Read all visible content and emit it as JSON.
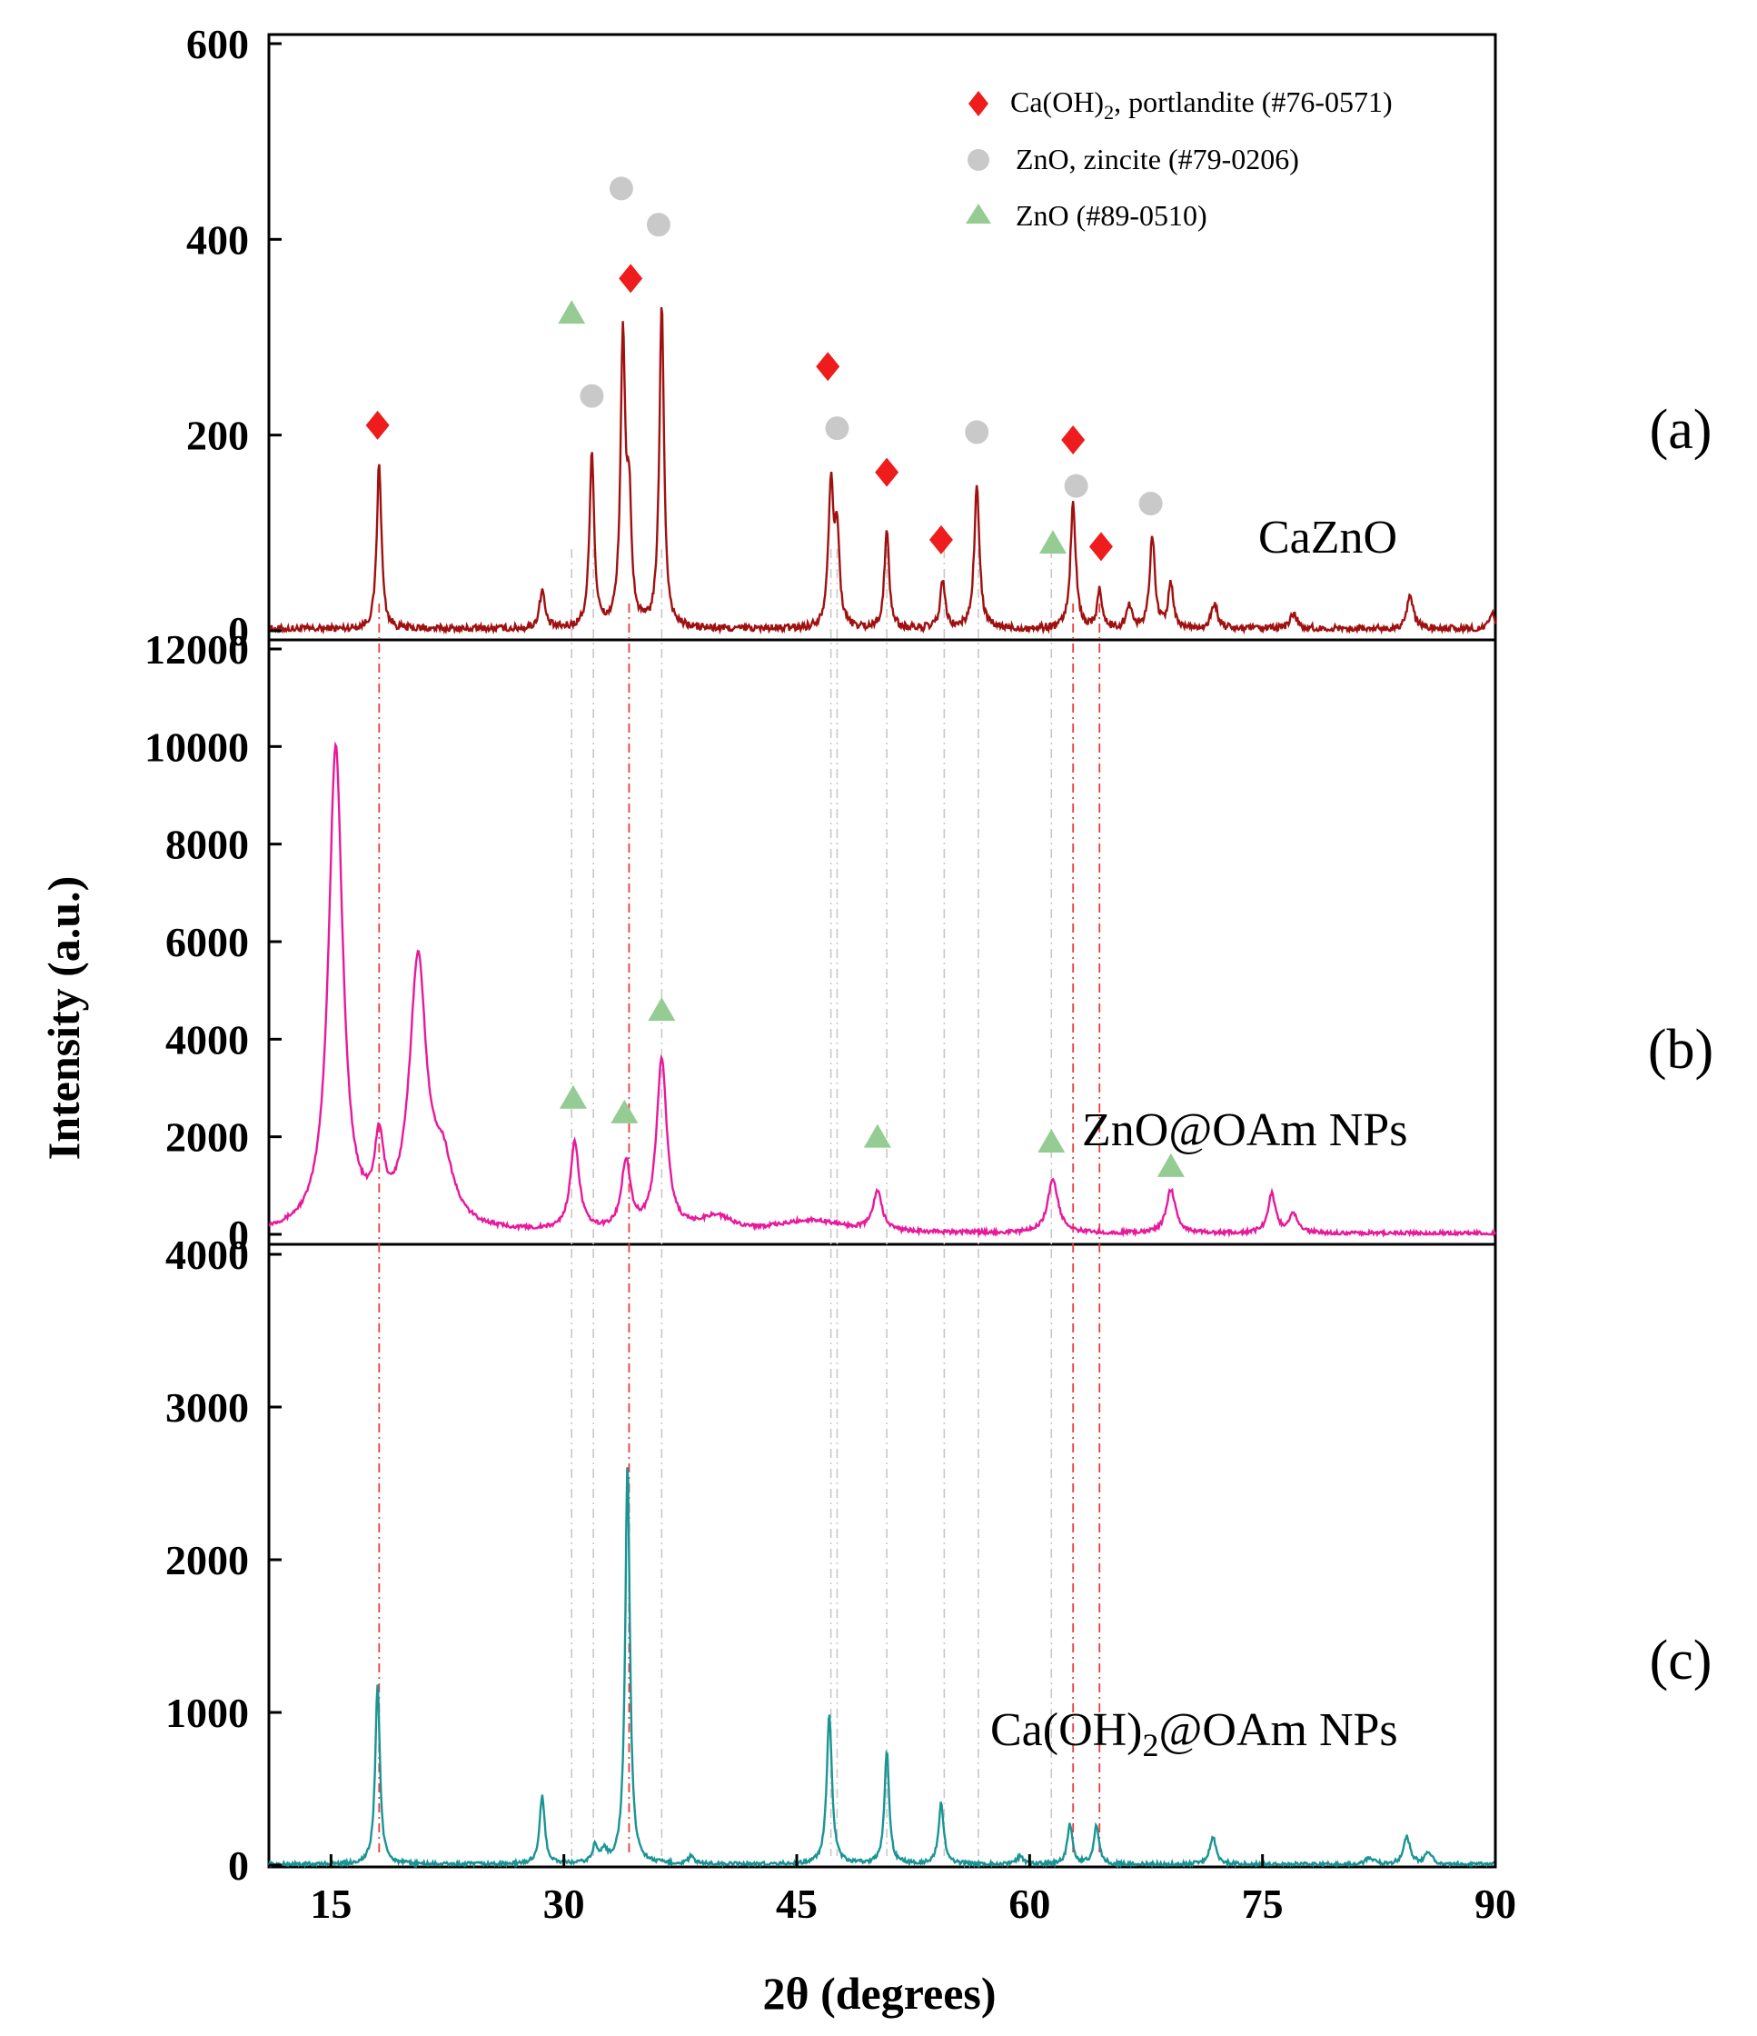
{
  "chart_data": {
    "type": "line",
    "title": "",
    "xlabel": "2θ (degrees)",
    "ylabel": "Intensity (a.u.)",
    "xlim": [
      11,
      90
    ],
    "x_ticks": [
      15,
      30,
      45,
      60,
      75,
      90
    ],
    "x_tick_labels": [
      "15",
      "30",
      "45",
      "60",
      "75",
      "90"
    ],
    "legend": {
      "placement": "top-right",
      "entries": [
        {
          "marker": "diamond",
          "color": "#ee1c1c",
          "label_pre": "Ca(OH)",
          "label_sub": "2",
          "label_post": ", portlandite (#76-0571)"
        },
        {
          "marker": "circle",
          "color": "#c9c9c9",
          "label_pre": "ZnO, zincite (#79-0206)",
          "label_sub": "",
          "label_post": ""
        },
        {
          "marker": "triangle",
          "color": "#94cc94",
          "label_pre": "ZnO (#89-0510)",
          "label_sub": "",
          "label_post": ""
        }
      ]
    },
    "reference_lines": {
      "red": [
        18.1,
        34.2,
        62.8,
        64.5
      ],
      "gray": [
        30.5,
        31.9,
        36.3,
        47.2,
        47.6,
        50.8,
        54.5,
        56.7,
        61.4
      ]
    },
    "panels": [
      {
        "panel_label": "(a)",
        "sample_label": "CaZnO",
        "line_color": "#a01010",
        "ylim": [
          0,
          600
        ],
        "y_ticks": [
          0,
          200,
          400,
          600
        ],
        "y_tick_labels": [
          "0",
          "200",
          "400",
          "600"
        ],
        "noise": 8,
        "peaks": [
          [
            18.1,
            170,
            0.18
          ],
          [
            28.6,
            40,
            0.2
          ],
          [
            31.8,
            180,
            0.18
          ],
          [
            33.8,
            290,
            0.18
          ],
          [
            34.2,
            120,
            0.18
          ],
          [
            36.3,
            330,
            0.18
          ],
          [
            47.2,
            145,
            0.2
          ],
          [
            47.6,
            90,
            0.18
          ],
          [
            50.8,
            100,
            0.18
          ],
          [
            54.4,
            50,
            0.18
          ],
          [
            56.6,
            145,
            0.2
          ],
          [
            62.8,
            130,
            0.2
          ],
          [
            64.5,
            40,
            0.18
          ],
          [
            66.4,
            25,
            0.2
          ],
          [
            67.9,
            95,
            0.2
          ],
          [
            69.1,
            45,
            0.2
          ],
          [
            71.9,
            25,
            0.25
          ],
          [
            77.0,
            15,
            0.3
          ],
          [
            84.5,
            35,
            0.25
          ],
          [
            89.8,
            15,
            0.2
          ]
        ],
        "markers": [
          {
            "type": "diamond",
            "x": 18.0,
            "y": 210
          },
          {
            "type": "triangle",
            "x": 30.5,
            "y": 325
          },
          {
            "type": "circle",
            "x": 31.8,
            "y": 240
          },
          {
            "type": "circle",
            "x": 33.7,
            "y": 452
          },
          {
            "type": "diamond",
            "x": 34.3,
            "y": 360
          },
          {
            "type": "circle",
            "x": 36.1,
            "y": 415
          },
          {
            "type": "diamond",
            "x": 47.0,
            "y": 270
          },
          {
            "type": "circle",
            "x": 47.6,
            "y": 207
          },
          {
            "type": "diamond",
            "x": 50.8,
            "y": 162
          },
          {
            "type": "diamond",
            "x": 54.3,
            "y": 93
          },
          {
            "type": "circle",
            "x": 56.6,
            "y": 203
          },
          {
            "type": "triangle",
            "x": 61.5,
            "y": 90
          },
          {
            "type": "diamond",
            "x": 62.8,
            "y": 195
          },
          {
            "type": "circle",
            "x": 63.0,
            "y": 148
          },
          {
            "type": "diamond",
            "x": 64.6,
            "y": 86
          },
          {
            "type": "circle",
            "x": 67.8,
            "y": 130
          }
        ]
      },
      {
        "panel_label": "(b)",
        "sample_label": "ZnO@OAm NPs",
        "line_color": "#e8199b",
        "ylim": [
          0,
          12000
        ],
        "y_ticks": [
          0,
          2000,
          4000,
          6000,
          8000,
          10000,
          12000
        ],
        "y_tick_labels": [
          "0",
          "2000",
          "4000",
          "6000",
          "8000",
          "10000",
          "12000"
        ],
        "noise": 80,
        "peaks": [
          [
            15.3,
            9900,
            0.55
          ],
          [
            18.1,
            1500,
            0.35
          ],
          [
            20.6,
            5400,
            0.65
          ],
          [
            22.2,
            1200,
            0.8
          ],
          [
            30.7,
            1800,
            0.35
          ],
          [
            34.0,
            1400,
            0.35
          ],
          [
            36.3,
            3500,
            0.4
          ],
          [
            39.8,
            300,
            1.2
          ],
          [
            46.0,
            250,
            2.5
          ],
          [
            50.2,
            800,
            0.35
          ],
          [
            61.5,
            1100,
            0.4
          ],
          [
            69.1,
            900,
            0.35
          ],
          [
            75.6,
            800,
            0.3
          ],
          [
            77.0,
            400,
            0.3
          ]
        ],
        "markers": [
          {
            "type": "triangle",
            "x": 30.6,
            "y": 2800
          },
          {
            "type": "triangle",
            "x": 33.9,
            "y": 2500
          },
          {
            "type": "triangle",
            "x": 36.3,
            "y": 4600
          },
          {
            "type": "triangle",
            "x": 50.2,
            "y": 2000
          },
          {
            "type": "triangle",
            "x": 61.4,
            "y": 1900
          },
          {
            "type": "triangle",
            "x": 69.1,
            "y": 1400
          }
        ]
      },
      {
        "panel_label": "(c)",
        "sample_label_pre": "Ca(OH)",
        "sample_label_sub": "2",
        "sample_label_post": "@OAm NPs",
        "line_color": "#1a9494",
        "ylim": [
          0,
          4000
        ],
        "y_ticks": [
          0,
          1000,
          2000,
          3000,
          4000
        ],
        "y_tick_labels": [
          "0",
          "1000",
          "2000",
          "3000",
          "4000"
        ],
        "noise": 25,
        "peaks": [
          [
            18.0,
            1180,
            0.18
          ],
          [
            28.6,
            440,
            0.2
          ],
          [
            32.0,
            110,
            0.2
          ],
          [
            32.6,
            80,
            0.2
          ],
          [
            34.1,
            2620,
            0.18
          ],
          [
            38.2,
            50,
            0.2
          ],
          [
            47.1,
            980,
            0.2
          ],
          [
            50.8,
            740,
            0.18
          ],
          [
            54.3,
            400,
            0.2
          ],
          [
            59.4,
            50,
            0.25
          ],
          [
            62.6,
            260,
            0.2
          ],
          [
            64.3,
            250,
            0.2
          ],
          [
            71.8,
            180,
            0.25
          ],
          [
            81.9,
            40,
            0.3
          ],
          [
            84.3,
            180,
            0.25
          ],
          [
            85.7,
            80,
            0.25
          ]
        ]
      }
    ]
  }
}
